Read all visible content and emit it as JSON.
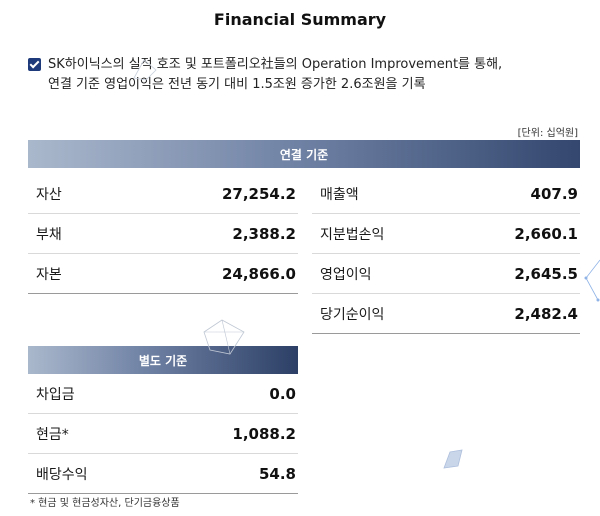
{
  "title": "Financial Summary",
  "summary": {
    "line1": "SK하이닉스의 실적 호조 및 포트폴리오社들의 Operation Improvement를 통해,",
    "line2": "연결 기준 영업이익은 전년 동기 대비 1.5조원 증가한 2.6조원을 기록"
  },
  "unit_label": "[단위: 십억원]",
  "consolidated": {
    "header": "연결 기준",
    "left": [
      {
        "label": "자산",
        "value": "27,254.2"
      },
      {
        "label": "부채",
        "value": "2,388.2"
      },
      {
        "label": "자본",
        "value": "24,866.0"
      }
    ],
    "right": [
      {
        "label": "매출액",
        "value": "407.9"
      },
      {
        "label": "지분법손익",
        "value": "2,660.1"
      },
      {
        "label": "영업이익",
        "value": "2,645.5"
      },
      {
        "label": "당기순이익",
        "value": "2,482.4"
      }
    ]
  },
  "separate": {
    "header": "별도 기준",
    "rows": [
      {
        "label": "차입금",
        "value": "0.0"
      },
      {
        "label": "현금*",
        "value": "1,088.2"
      },
      {
        "label": "배당수익",
        "value": "54.8"
      }
    ]
  },
  "footnote": "* 현금 및 현금성자산, 단기금융상품",
  "colors": {
    "accent": "#1f3a7a",
    "band_dark": "#2c3f66",
    "band_light": "#aab8cc"
  }
}
